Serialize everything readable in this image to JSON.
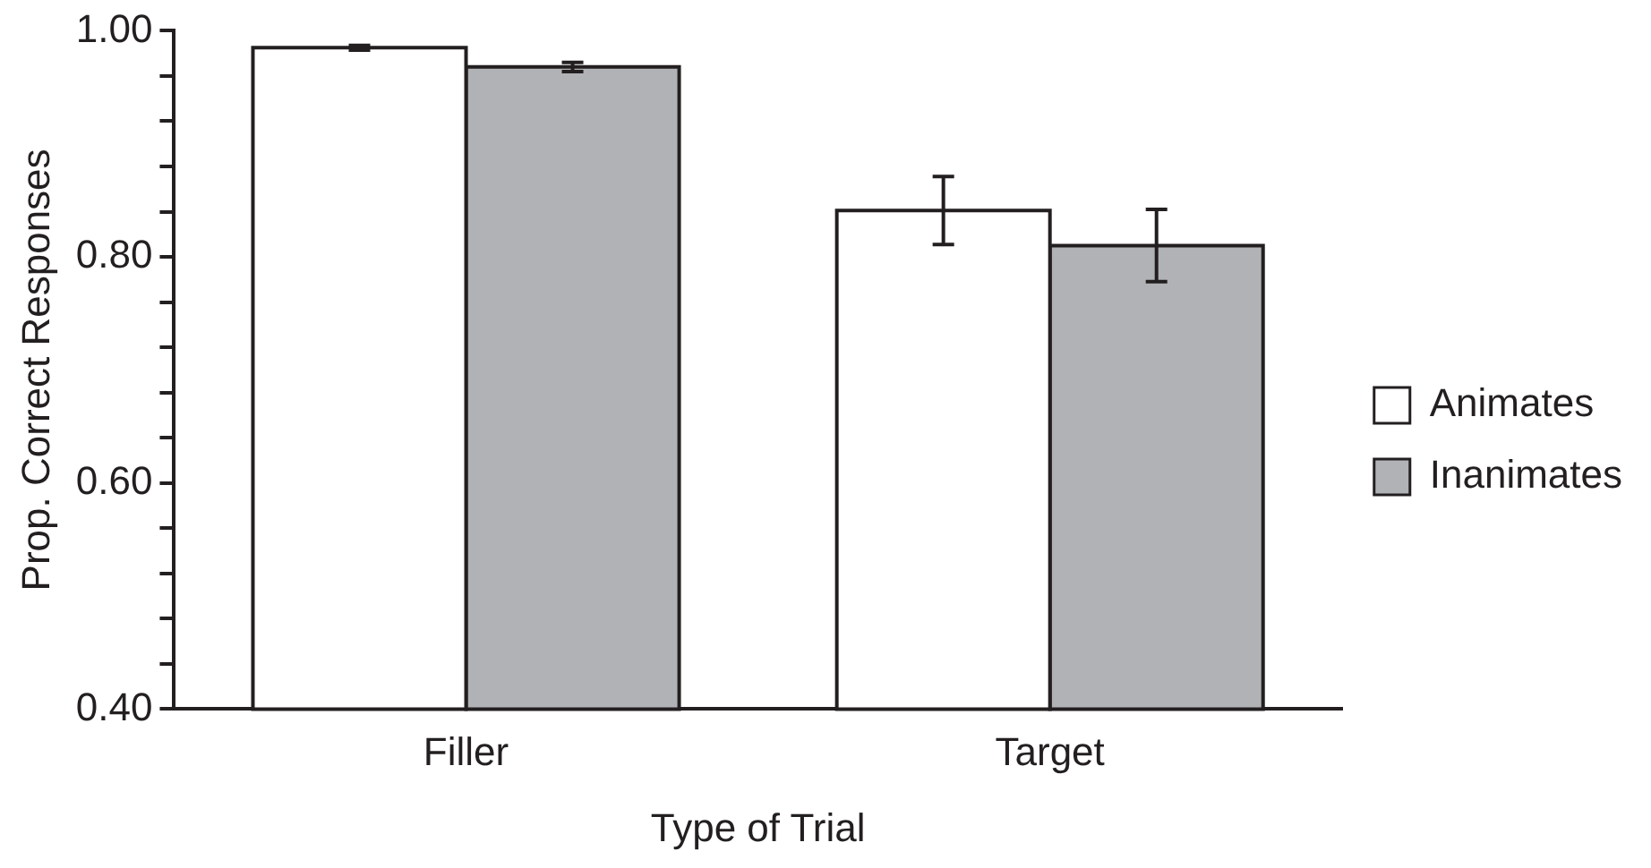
{
  "chart_data": {
    "type": "bar",
    "xlabel": "Type of Trial",
    "ylabel": "Prop. Correct Responses",
    "categories": [
      "Filler",
      "Target"
    ],
    "series": [
      {
        "name": "Animates",
        "color": "#ffffff",
        "values": [
          0.985,
          0.841
        ],
        "errors": [
          0.002,
          0.03
        ]
      },
      {
        "name": "Inanimates",
        "color": "#b1b2b5",
        "values": [
          0.968,
          0.81
        ],
        "errors": [
          0.004,
          0.032
        ]
      }
    ],
    "ylim": [
      0.4,
      1.0
    ],
    "yticks": [
      {
        "value": 0.4,
        "label": "0.40"
      },
      {
        "value": 0.44,
        "label": null
      },
      {
        "value": 0.48,
        "label": null
      },
      {
        "value": 0.52,
        "label": null
      },
      {
        "value": 0.56,
        "label": null
      },
      {
        "value": 0.6,
        "label": "0.60"
      },
      {
        "value": 0.64,
        "label": null
      },
      {
        "value": 0.68,
        "label": null
      },
      {
        "value": 0.72,
        "label": null
      },
      {
        "value": 0.76,
        "label": null
      },
      {
        "value": 0.8,
        "label": "0.80"
      },
      {
        "value": 0.84,
        "label": null
      },
      {
        "value": 0.88,
        "label": null
      },
      {
        "value": 0.92,
        "label": null
      },
      {
        "value": 0.96,
        "label": null
      },
      {
        "value": 1.0,
        "label": "1.00"
      }
    ],
    "grid": false,
    "legend": "right"
  }
}
